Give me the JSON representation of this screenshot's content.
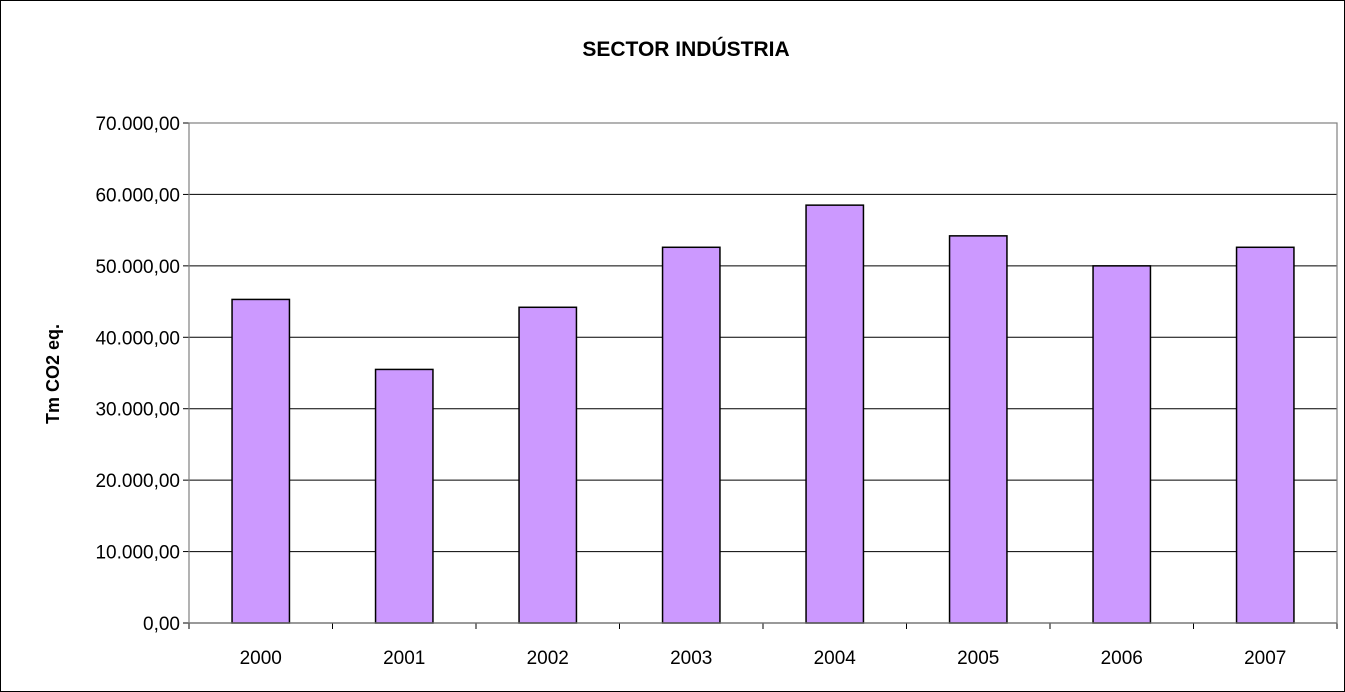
{
  "chart_data": {
    "type": "bar",
    "title": "SECTOR INDÚSTRIA",
    "xlabel": "",
    "ylabel": "Tm CO2 eq.",
    "categories": [
      "2000",
      "2001",
      "2002",
      "2003",
      "2004",
      "2005",
      "2006",
      "2007"
    ],
    "values": [
      45300,
      35500,
      44200,
      52600,
      58500,
      54200,
      50000,
      52600
    ],
    "ylim": [
      0,
      70000
    ],
    "y_ticks": [
      0,
      10000,
      20000,
      30000,
      40000,
      50000,
      60000,
      70000
    ],
    "y_tick_labels": [
      "0,00",
      "10.000,00",
      "20.000,00",
      "30.000,00",
      "40.000,00",
      "50.000,00",
      "60.000,00",
      "70.000,00"
    ],
    "grid": true,
    "legend": false,
    "colors": {
      "bar_fill": "#cc99ff",
      "bar_stroke": "#000000",
      "plot_border": "#808080",
      "gridline": "#000000",
      "frame_border": "#000000"
    }
  }
}
